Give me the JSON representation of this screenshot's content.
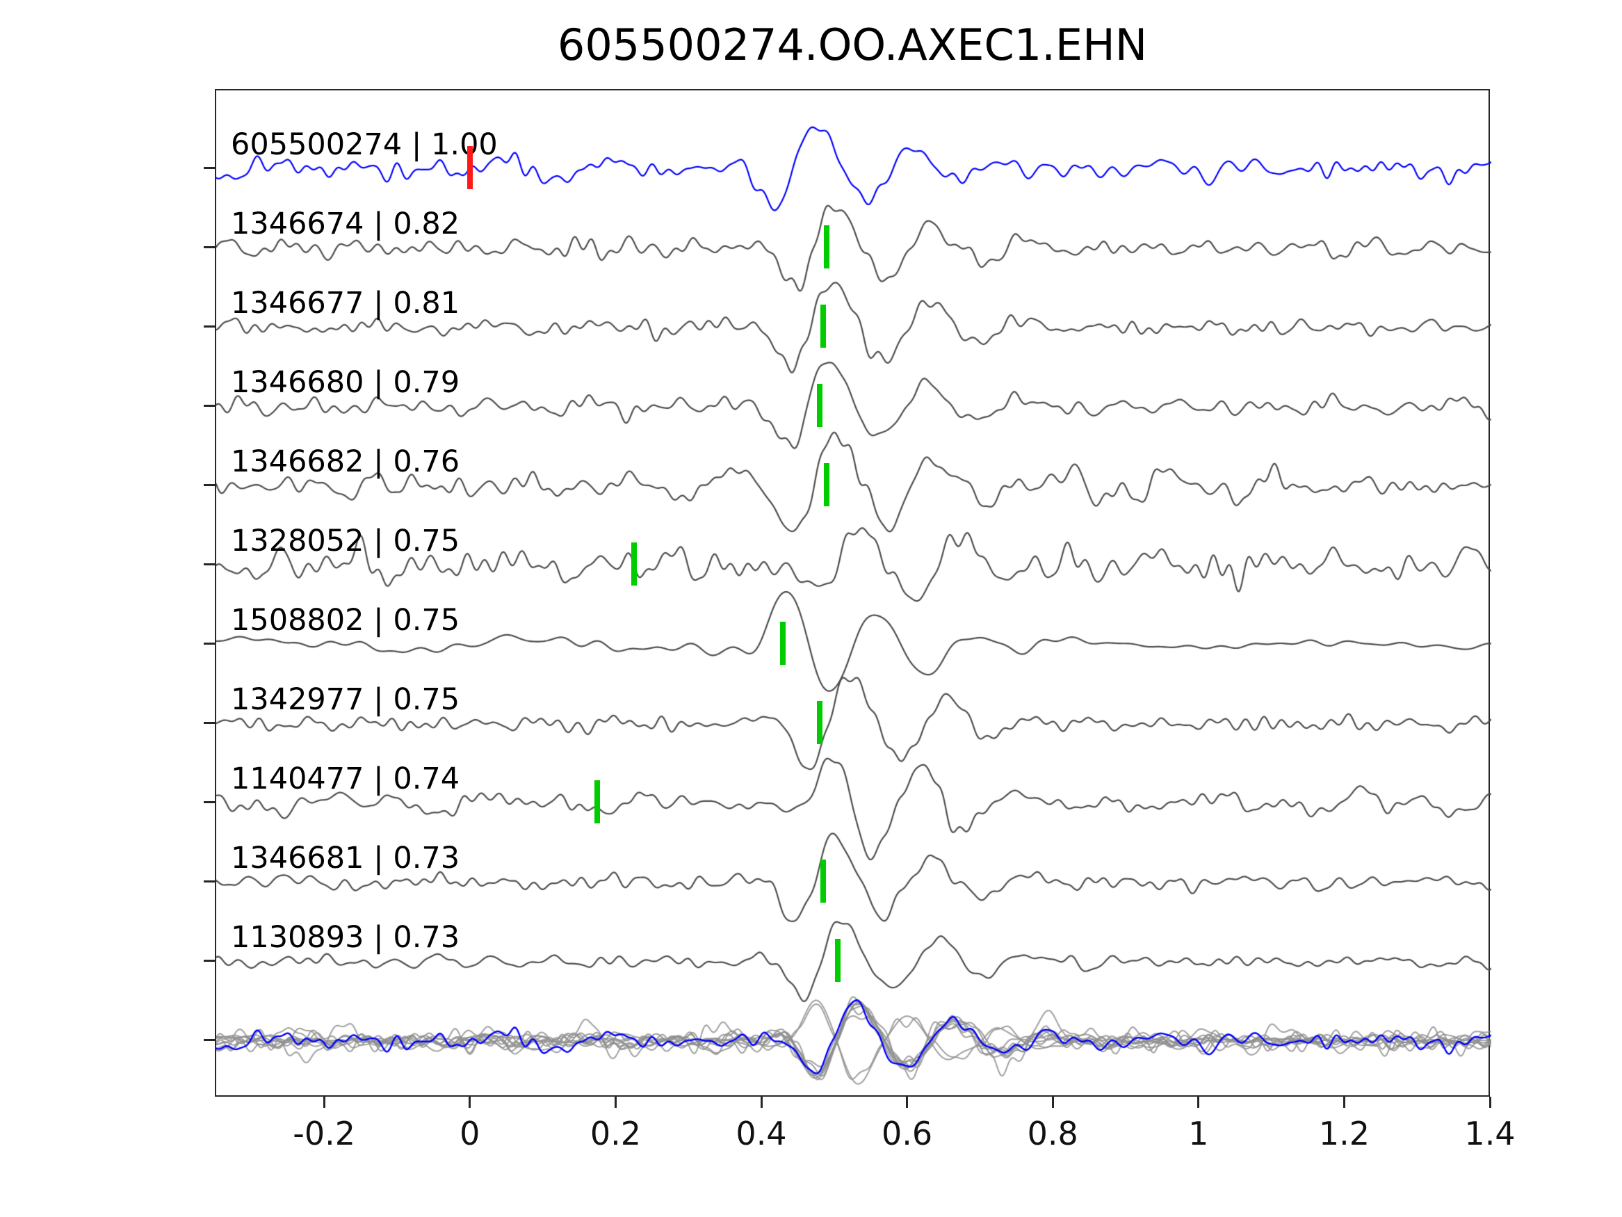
{
  "title": "605500274.OO.AXEC1.EHN",
  "colors": {
    "template_trace": "#0000ff",
    "match_trace": "#4d4d4d",
    "overlay_trace": "#8f8f8f",
    "template_pick": "#ff1a1a",
    "match_pick": "#00cc00",
    "axis": "#262626",
    "text": "#000000",
    "background": "#ffffff"
  },
  "chart_data": {
    "type": "line",
    "title": "605500274.OO.AXEC1.EHN",
    "xlabel": "",
    "ylabel": "",
    "xlim": [
      -0.35,
      1.4
    ],
    "grid": false,
    "legend": "none",
    "x_ticks": [
      -0.2,
      0,
      0.2,
      0.4,
      0.6,
      0.8,
      1,
      1.2,
      1.4
    ],
    "x_tick_labels": [
      "-0.2",
      "0",
      "0.2",
      "0.4",
      "0.6",
      "0.8",
      "1",
      "1.2",
      "1.4"
    ],
    "description": "Template waveform (blue, top) and ten matched detection waveforms (gray) with correlation coefficients; red tick = template pick time, green ticks = detection pick times; bottom row overlays all aligned traces.",
    "traces": [
      {
        "id": "605500274",
        "corr": 1.0,
        "label": "605500274 | 1.00",
        "color": "#0000ff",
        "pick": 0.0,
        "pick_color": "#ff1a1a",
        "burst": 0.44,
        "noise": 0.9,
        "amp": 1.0,
        "seed": 11
      },
      {
        "id": "1346674",
        "corr": 0.82,
        "label": "1346674 | 0.82",
        "color": "#4d4d4d",
        "pick": 0.49,
        "pick_color": "#00cc00",
        "burst": 0.47,
        "noise": 0.85,
        "amp": 1.05,
        "seed": 23
      },
      {
        "id": "1346677",
        "corr": 0.81,
        "label": "1346677 | 0.81",
        "color": "#4d4d4d",
        "pick": 0.485,
        "pick_color": "#00cc00",
        "burst": 0.465,
        "noise": 0.8,
        "amp": 1.1,
        "seed": 37
      },
      {
        "id": "1346680",
        "corr": 0.79,
        "label": "1346680 | 0.79",
        "color": "#4d4d4d",
        "pick": 0.48,
        "pick_color": "#00cc00",
        "burst": 0.46,
        "noise": 0.9,
        "amp": 1.05,
        "seed": 41
      },
      {
        "id": "1346682",
        "corr": 0.76,
        "label": "1346682 | 0.76",
        "color": "#4d4d4d",
        "pick": 0.49,
        "pick_color": "#00cc00",
        "burst": 0.47,
        "noise": 1.2,
        "amp": 1.0,
        "seed": 59
      },
      {
        "id": "1328052",
        "corr": 0.75,
        "label": "1328052 | 0.75",
        "color": "#4d4d4d",
        "pick": 0.225,
        "pick_color": "#00cc00",
        "burst": 0.5,
        "noise": 1.45,
        "amp": 1.1,
        "seed": 67
      },
      {
        "id": "1508802",
        "corr": 0.75,
        "label": "1508802 | 0.75",
        "color": "#4d4d4d",
        "pick": 0.43,
        "pick_color": "#00cc00",
        "burst": 0.46,
        "noise": 0.5,
        "amp": 1.2,
        "seed": 73,
        "smooth": true,
        "tail": 0.45,
        "phase": 3.1
      },
      {
        "id": "1342977",
        "corr": 0.75,
        "label": "1342977 | 0.75",
        "color": "#4d4d4d",
        "pick": 0.48,
        "pick_color": "#00cc00",
        "burst": 0.49,
        "noise": 0.8,
        "amp": 1.1,
        "seed": 83
      },
      {
        "id": "1140477",
        "corr": 0.74,
        "label": "1140477 | 0.74",
        "color": "#4d4d4d",
        "pick": 0.175,
        "pick_color": "#00cc00",
        "burst": 0.52,
        "noise": 0.9,
        "amp": 1.1,
        "seed": 97,
        "phase": 3.1
      },
      {
        "id": "1346681",
        "corr": 0.73,
        "label": "1346681 | 0.73",
        "color": "#4d4d4d",
        "pick": 0.485,
        "pick_color": "#00cc00",
        "burst": 0.47,
        "noise": 0.8,
        "amp": 1.05,
        "seed": 103
      },
      {
        "id": "1130893",
        "corr": 0.73,
        "label": "1130893 | 0.73",
        "color": "#4d4d4d",
        "pick": 0.505,
        "pick_color": "#00cc00",
        "burst": 0.48,
        "noise": 0.7,
        "amp": 1.0,
        "seed": 113
      }
    ],
    "overlay": {
      "trace_color": "#8f8f8f",
      "template_color": "#0000ff",
      "align_time": 0.5
    }
  }
}
